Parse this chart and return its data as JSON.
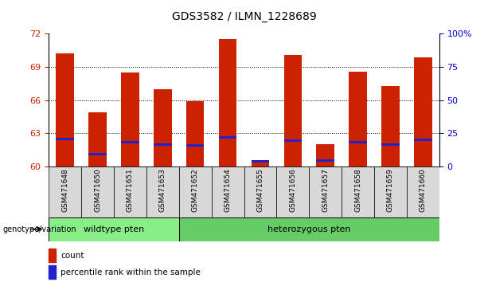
{
  "title": "GDS3582 / ILMN_1228689",
  "samples": [
    "GSM471648",
    "GSM471650",
    "GSM471651",
    "GSM471653",
    "GSM471652",
    "GSM471654",
    "GSM471655",
    "GSM471656",
    "GSM471657",
    "GSM471658",
    "GSM471659",
    "GSM471660"
  ],
  "count_values": [
    70.2,
    64.9,
    68.5,
    67.0,
    65.9,
    71.5,
    60.35,
    70.1,
    62.0,
    68.6,
    67.3,
    69.9
  ],
  "percentile_values": [
    62.5,
    61.1,
    62.2,
    62.0,
    61.9,
    62.6,
    60.45,
    62.3,
    60.5,
    62.2,
    62.0,
    62.4
  ],
  "y_min": 60,
  "y_max": 72,
  "y_ticks": [
    60,
    63,
    66,
    69,
    72
  ],
  "y2_ticks": [
    0,
    25,
    50,
    75,
    100
  ],
  "y2_tick_labels": [
    "0",
    "25",
    "50",
    "75",
    "100%"
  ],
  "bar_color": "#cc2200",
  "percentile_color": "#2222cc",
  "sample_bg_color": "#d8d8d8",
  "wildtype_color": "#88ee88",
  "heterozygous_color": "#66cc66",
  "wildtype_samples": [
    "GSM471648",
    "GSM471650",
    "GSM471651",
    "GSM471653"
  ],
  "heterozygous_samples": [
    "GSM471652",
    "GSM471654",
    "GSM471655",
    "GSM471656",
    "GSM471657",
    "GSM471658",
    "GSM471659",
    "GSM471660"
  ],
  "wildtype_label": "wildtype pten",
  "heterozygous_label": "heterozygous pten",
  "genotype_label": "genotype/variation",
  "legend_count": "count",
  "legend_percentile": "percentile rank within the sample",
  "bar_width": 0.55,
  "tick_color_left": "#cc2200",
  "tick_color_right": "#0000cc"
}
